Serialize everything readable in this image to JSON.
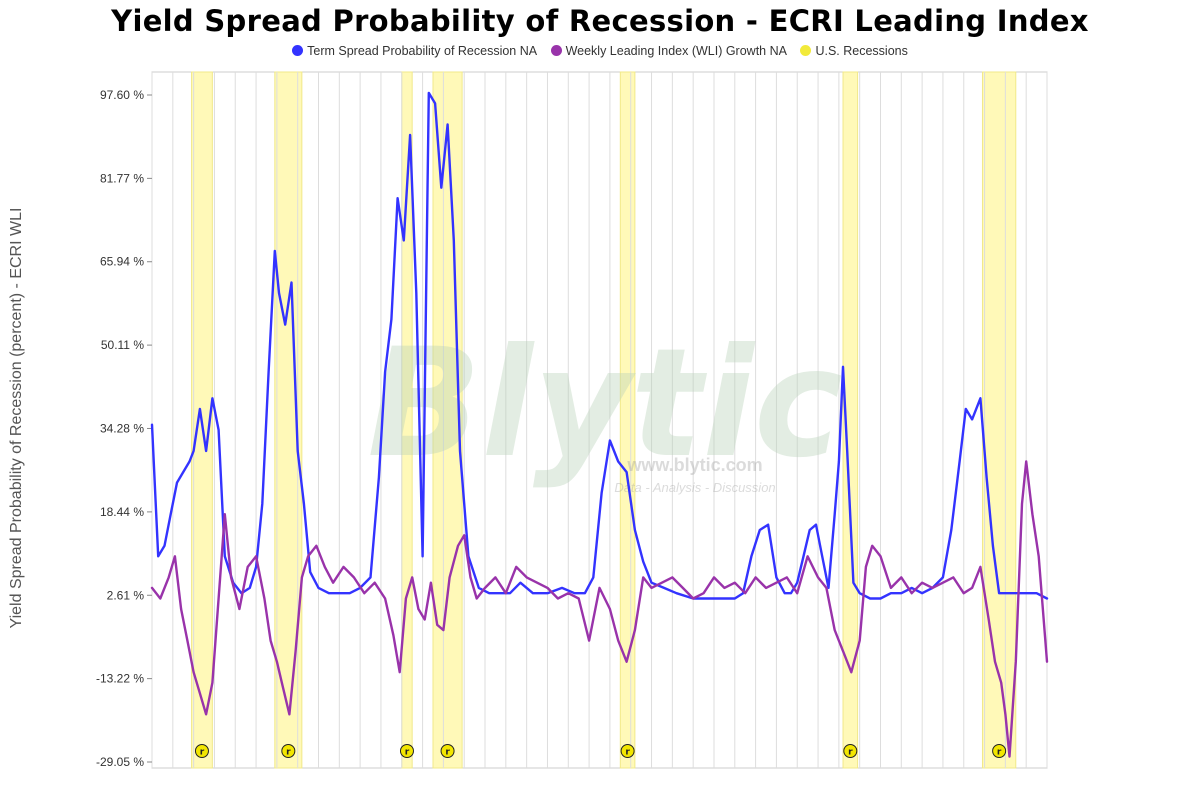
{
  "chart_data": {
    "type": "line",
    "title": "Yield Spread Probability of Recession - ECRI Leading Index",
    "xlabel": "",
    "ylabel": "Yield Spread Probability of Recession (percent) - ECRI WLI",
    "ylim": [
      -29.05,
      100
    ],
    "yticks": [
      "97.60 %",
      "81.77 %",
      "65.94 %",
      "50.11 %",
      "34.28 %",
      "18.44 %",
      "2.61 %",
      "-13.22 %",
      "-29.05 %"
    ],
    "ytick_values": [
      97.6,
      81.77,
      65.94,
      50.11,
      34.28,
      18.44,
      2.61,
      -13.22,
      -29.05
    ],
    "xlim": [
      1968,
      2011
    ],
    "grid": true,
    "legend": "top",
    "watermark": {
      "text": "Blytic",
      "sub1": "www.blytic.com",
      "sub2": "Data - Analysis - Discussion"
    },
    "event_marker_glyph": "r",
    "recession_bands": [
      {
        "name": "U.S. Recessions",
        "start": 1969.9,
        "end": 1970.9
      },
      {
        "name": "U.S. Recessions",
        "start": 1973.9,
        "end": 1975.2
      },
      {
        "name": "U.S. Recessions",
        "start": 1980.0,
        "end": 1980.5
      },
      {
        "name": "U.S. Recessions",
        "start": 1981.5,
        "end": 1982.9
      },
      {
        "name": "U.S. Recessions",
        "start": 1990.5,
        "end": 1991.2
      },
      {
        "name": "U.S. Recessions",
        "start": 2001.2,
        "end": 2001.9
      },
      {
        "name": "U.S. Recessions",
        "start": 2007.9,
        "end": 2009.5
      }
    ],
    "series": [
      {
        "name": "Term Spread Probability of Recession NA",
        "color": "#3333ff",
        "x": [
          1968.0,
          1968.3,
          1968.6,
          1968.9,
          1969.2,
          1969.5,
          1969.8,
          1970.0,
          1970.3,
          1970.6,
          1970.9,
          1971.2,
          1971.5,
          1971.9,
          1972.3,
          1972.7,
          1973.0,
          1973.3,
          1973.6,
          1973.9,
          1974.1,
          1974.4,
          1974.7,
          1975.0,
          1975.3,
          1975.6,
          1976.0,
          1976.5,
          1977.0,
          1977.5,
          1978.0,
          1978.5,
          1978.9,
          1979.2,
          1979.5,
          1979.8,
          1980.1,
          1980.4,
          1980.7,
          1981.0,
          1981.3,
          1981.6,
          1981.9,
          1982.2,
          1982.5,
          1982.8,
          1983.2,
          1983.7,
          1984.2,
          1984.7,
          1985.2,
          1985.7,
          1986.3,
          1987.0,
          1987.7,
          1988.3,
          1988.8,
          1989.2,
          1989.6,
          1990.0,
          1990.4,
          1990.8,
          1991.2,
          1991.6,
          1992.0,
          1992.6,
          1993.2,
          1994.0,
          1994.8,
          1995.5,
          1996.0,
          1996.4,
          1996.8,
          1997.2,
          1997.6,
          1998.0,
          1998.4,
          1998.7,
          1999.0,
          1999.3,
          1999.6,
          1999.9,
          2000.2,
          2000.5,
          2000.8,
          2001.0,
          2001.2,
          2001.4,
          2001.7,
          2002.0,
          2002.5,
          2003.0,
          2003.5,
          2004.0,
          2004.5,
          2005.0,
          2005.5,
          2006.0,
          2006.4,
          2006.8,
          2007.1,
          2007.4,
          2007.8,
          2008.1,
          2008.4,
          2008.7,
          2009.0,
          2009.3,
          2009.6,
          2010.0,
          2010.5,
          2011.0
        ],
        "y": [
          35,
          10,
          12,
          18,
          24,
          26,
          28,
          30,
          38,
          30,
          40,
          34,
          10,
          5,
          3,
          4,
          8,
          20,
          45,
          68,
          60,
          54,
          62,
          30,
          20,
          7,
          4,
          3,
          3,
          3,
          4,
          6,
          25,
          45,
          55,
          78,
          70,
          90,
          60,
          10,
          98,
          96,
          80,
          92,
          70,
          30,
          10,
          4,
          3,
          3,
          3,
          5,
          3,
          3,
          4,
          3,
          3,
          6,
          22,
          32,
          28,
          26,
          15,
          9,
          5,
          4,
          3,
          2,
          2,
          2,
          2,
          3,
          10,
          15,
          16,
          6,
          3,
          3,
          5,
          10,
          15,
          16,
          10,
          4,
          18,
          28,
          46,
          30,
          5,
          3,
          2,
          2,
          3,
          3,
          4,
          3,
          4,
          6,
          15,
          28,
          38,
          36,
          40,
          25,
          12,
          3,
          3,
          3,
          3,
          3,
          3,
          2
        ]
      },
      {
        "name": "Weekly Leading Index (WLI) Growth NA",
        "color": "#9933aa",
        "x": [
          1968.0,
          1968.4,
          1968.8,
          1969.1,
          1969.4,
          1969.7,
          1970.0,
          1970.3,
          1970.6,
          1970.9,
          1971.2,
          1971.5,
          1971.8,
          1972.2,
          1972.6,
          1973.0,
          1973.4,
          1973.7,
          1974.0,
          1974.3,
          1974.6,
          1974.9,
          1975.2,
          1975.5,
          1975.9,
          1976.3,
          1976.7,
          1977.2,
          1977.7,
          1978.2,
          1978.7,
          1979.2,
          1979.6,
          1979.9,
          1980.2,
          1980.5,
          1980.8,
          1981.1,
          1981.4,
          1981.7,
          1982.0,
          1982.3,
          1982.7,
          1983.0,
          1983.3,
          1983.6,
          1984.0,
          1984.5,
          1985.0,
          1985.5,
          1986.0,
          1986.5,
          1987.0,
          1987.5,
          1988.0,
          1988.5,
          1989.0,
          1989.5,
          1990.0,
          1990.4,
          1990.8,
          1991.2,
          1991.6,
          1992.0,
          1992.5,
          1993.0,
          1993.5,
          1994.0,
          1994.5,
          1995.0,
          1995.5,
          1996.0,
          1996.5,
          1997.0,
          1997.5,
          1998.0,
          1998.5,
          1999.0,
          1999.5,
          2000.0,
          2000.4,
          2000.8,
          2001.2,
          2001.6,
          2002.0,
          2002.3,
          2002.6,
          2003.0,
          2003.5,
          2004.0,
          2004.5,
          2005.0,
          2005.5,
          2006.0,
          2006.5,
          2007.0,
          2007.4,
          2007.8,
          2008.2,
          2008.5,
          2008.8,
          2009.0,
          2009.2,
          2009.5,
          2009.8,
          2010.0,
          2010.3,
          2010.6,
          2011.0
        ],
        "y": [
          4,
          2,
          6,
          10,
          0,
          -6,
          -12,
          -16,
          -20,
          -14,
          2,
          18,
          6,
          0,
          8,
          10,
          2,
          -6,
          -10,
          -15,
          -20,
          -8,
          6,
          10,
          12,
          8,
          5,
          8,
          6,
          3,
          5,
          2,
          -5,
          -12,
          2,
          6,
          0,
          -2,
          5,
          -3,
          -4,
          6,
          12,
          14,
          6,
          2,
          4,
          6,
          3,
          8,
          6,
          5,
          4,
          2,
          3,
          2,
          -6,
          4,
          0,
          -6,
          -10,
          -4,
          6,
          4,
          5,
          6,
          4,
          2,
          3,
          6,
          4,
          5,
          3,
          6,
          4,
          5,
          6,
          3,
          10,
          6,
          4,
          -4,
          -8,
          -12,
          -6,
          8,
          12,
          10,
          4,
          6,
          3,
          5,
          4,
          5,
          6,
          3,
          4,
          8,
          -2,
          -10,
          -14,
          -20,
          -28,
          -10,
          20,
          28,
          18,
          10,
          -10
        ]
      }
    ]
  }
}
